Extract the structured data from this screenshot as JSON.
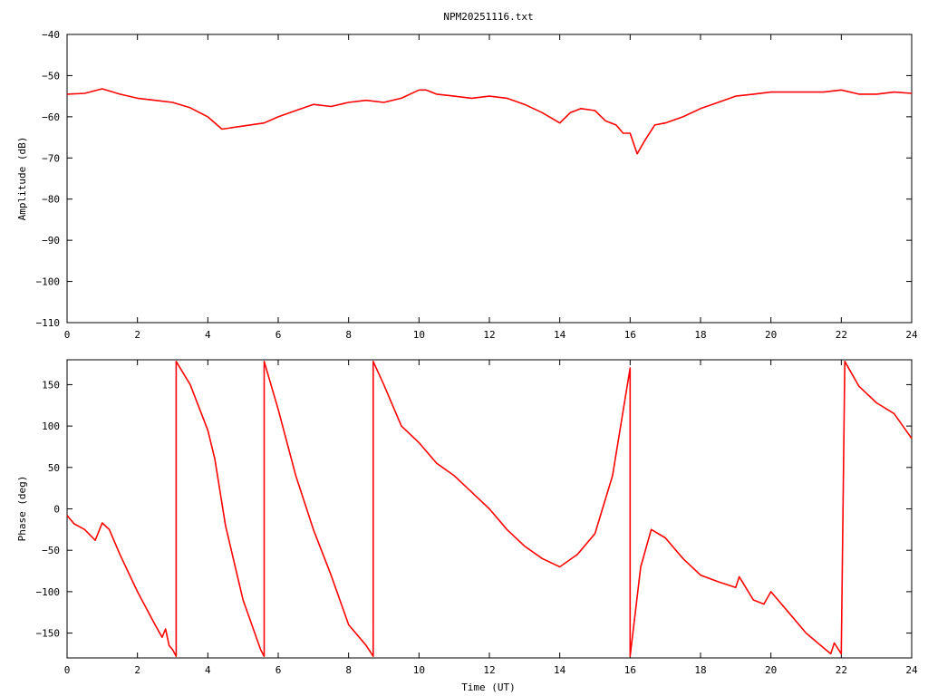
{
  "chart_data": [
    {
      "type": "line",
      "title": "NPM20251116.txt",
      "xlabel": "",
      "ylabel": "Amplitude (dB)",
      "xlim": [
        0,
        24
      ],
      "ylim": [
        -110,
        -40
      ],
      "xticks": [
        "0",
        "2",
        "4",
        "6",
        "8",
        "10",
        "12",
        "14",
        "16",
        "18",
        "20",
        "22",
        "24"
      ],
      "yticks": [
        "-40",
        "-50",
        "-60",
        "-70",
        "-80",
        "-90",
        "-100",
        "-110"
      ],
      "grid": false,
      "series": [
        {
          "color": "#ff0000",
          "x": [
            0,
            0.5,
            1.0,
            1.5,
            2.0,
            2.5,
            3.0,
            3.5,
            4.0,
            4.4,
            4.8,
            5.2,
            5.6,
            6.0,
            6.5,
            7.0,
            7.5,
            8.0,
            8.5,
            9.0,
            9.5,
            10.0,
            10.2,
            10.5,
            11.0,
            11.5,
            12.0,
            12.5,
            13.0,
            13.5,
            14.0,
            14.3,
            14.6,
            15.0,
            15.3,
            15.6,
            15.8,
            16.0,
            16.2,
            16.4,
            16.7,
            17.0,
            17.5,
            18.0,
            18.5,
            19.0,
            19.5,
            20.0,
            21.0,
            21.5,
            22.0,
            22.5,
            23.0,
            23.5,
            24.0
          ],
          "y": [
            -54.5,
            -54.3,
            -53.2,
            -54.5,
            -55.5,
            -56.0,
            -56.5,
            -57.8,
            -60.0,
            -63.0,
            -62.5,
            -62.0,
            -61.5,
            -60.0,
            -58.5,
            -57.0,
            -57.5,
            -56.5,
            -56.0,
            -56.5,
            -55.5,
            -53.5,
            -53.5,
            -54.5,
            -55.0,
            -55.5,
            -55.0,
            -55.5,
            -57.0,
            -59.0,
            -61.5,
            -59.0,
            -58.0,
            -58.5,
            -61.0,
            -62.0,
            -64.0,
            -64.0,
            -69.0,
            -66.0,
            -62.0,
            -61.5,
            -60.0,
            -58.0,
            -56.5,
            -55.0,
            -54.5,
            -54.0,
            -54.0,
            -54.0,
            -53.5,
            -54.5,
            -54.5,
            -54.0,
            -54.3
          ]
        }
      ]
    },
    {
      "type": "line",
      "title": "",
      "xlabel": "Time (UT)",
      "ylabel": "Phase (deg)",
      "xlim": [
        0,
        24
      ],
      "ylim": [
        -180,
        180
      ],
      "xticks": [
        "0",
        "2",
        "4",
        "6",
        "8",
        "10",
        "12",
        "14",
        "16",
        "18",
        "20",
        "22",
        "24"
      ],
      "yticks": [
        "150",
        "100",
        "50",
        "0",
        "-50",
        "-100",
        "-150"
      ],
      "grid": false,
      "series": [
        {
          "color": "#ff0000",
          "x": [
            0,
            0.2,
            0.5,
            0.8,
            1.0,
            1.2,
            1.5,
            2.0,
            2.5,
            2.7,
            2.8,
            2.9,
            3.0,
            3.1,
            3.1,
            3.5,
            4.0,
            4.2,
            4.5,
            5.0,
            5.5,
            5.6,
            5.6,
            6.0,
            6.5,
            7.0,
            7.5,
            8.0,
            8.5,
            8.7,
            8.7,
            9.0,
            9.5,
            10.0,
            10.5,
            11.0,
            11.5,
            12.0,
            12.5,
            13.0,
            13.5,
            14.0,
            14.5,
            15.0,
            15.5,
            16.0,
            16.0,
            16.3,
            16.6,
            17.0,
            17.5,
            18.0,
            18.5,
            19.0,
            19.1,
            19.5,
            19.8,
            20.0,
            20.5,
            21.0,
            21.5,
            21.7,
            21.8,
            22.0,
            22.1,
            22.1,
            22.5,
            23.0,
            23.5,
            24.0
          ],
          "y": [
            -8,
            -18,
            -25,
            -38,
            -17,
            -25,
            -55,
            -100,
            -140,
            -155,
            -145,
            -165,
            -170,
            -178,
            178,
            150,
            95,
            60,
            -20,
            -110,
            -170,
            -178,
            178,
            120,
            40,
            -25,
            -80,
            -140,
            -165,
            -178,
            178,
            150,
            100,
            80,
            55,
            40,
            20,
            0,
            -25,
            -45,
            -60,
            -70,
            -55,
            -30,
            40,
            170,
            -178,
            -70,
            -25,
            -35,
            -60,
            -80,
            -88,
            -95,
            -82,
            -110,
            -115,
            -100,
            -125,
            -150,
            -168,
            -175,
            -162,
            -175,
            178,
            178,
            148,
            128,
            115,
            85
          ]
        }
      ]
    }
  ]
}
